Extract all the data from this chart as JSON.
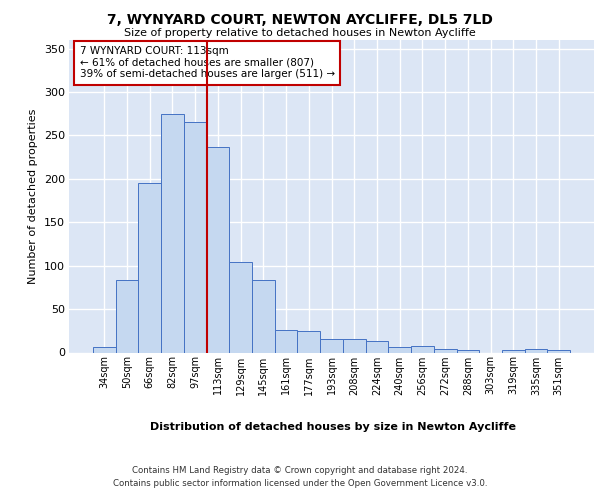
{
  "title": "7, WYNYARD COURT, NEWTON AYCLIFFE, DL5 7LD",
  "subtitle": "Size of property relative to detached houses in Newton Aycliffe",
  "xlabel": "Distribution of detached houses by size in Newton Aycliffe",
  "ylabel": "Number of detached properties",
  "categories": [
    "34sqm",
    "50sqm",
    "66sqm",
    "82sqm",
    "97sqm",
    "113sqm",
    "129sqm",
    "145sqm",
    "161sqm",
    "177sqm",
    "193sqm",
    "208sqm",
    "224sqm",
    "240sqm",
    "256sqm",
    "272sqm",
    "288sqm",
    "303sqm",
    "319sqm",
    "335sqm",
    "351sqm"
  ],
  "values": [
    6,
    84,
    195,
    275,
    265,
    237,
    104,
    84,
    26,
    25,
    16,
    15,
    13,
    6,
    7,
    4,
    3,
    0,
    3,
    4,
    3
  ],
  "bar_color": "#c5d8f0",
  "bar_edge_color": "#4472c4",
  "marker_index": 5,
  "vline_color": "#c00000",
  "annotation_text": "7 WYNYARD COURT: 113sqm\n← 61% of detached houses are smaller (807)\n39% of semi-detached houses are larger (511) →",
  "annotation_box_color": "#ffffff",
  "annotation_box_edge_color": "#c00000",
  "ylim": [
    0,
    360
  ],
  "yticks": [
    0,
    50,
    100,
    150,
    200,
    250,
    300,
    350
  ],
  "bg_color": "#dce6f5",
  "grid_color": "#ffffff",
  "footer_line1": "Contains HM Land Registry data © Crown copyright and database right 2024.",
  "footer_line2": "Contains public sector information licensed under the Open Government Licence v3.0."
}
